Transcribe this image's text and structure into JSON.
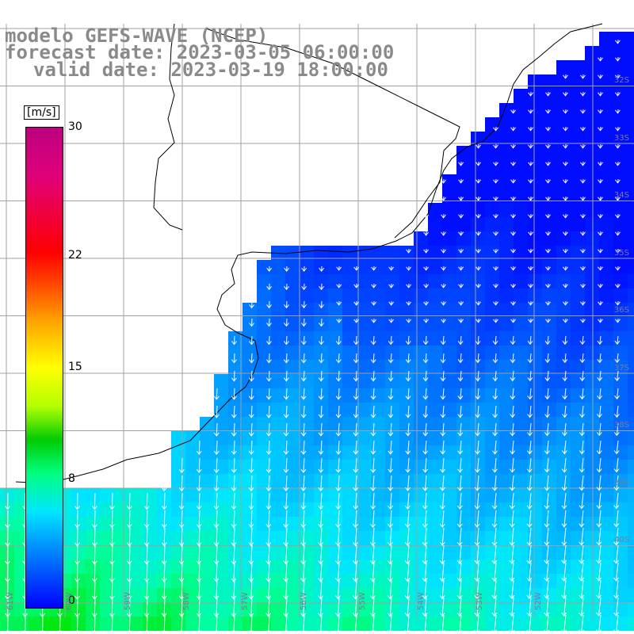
{
  "title": {
    "model": "modelo GEFS-WAVE (NCEP)",
    "forecast_date": "forecast date: 2023-03-05 06:00:00",
    "valid_date": "valid date: 2023-03-19 18:00:00"
  },
  "colorbar": {
    "unit": "[m/s]",
    "ticks": [
      {
        "value": 30,
        "label": "30"
      },
      {
        "value": 22,
        "label": "22"
      },
      {
        "value": 15,
        "label": "15"
      },
      {
        "value": 8,
        "label": "8"
      },
      {
        "value": 0,
        "label": "0"
      }
    ],
    "colors": [
      "#0000ff",
      "#0095ff",
      "#00e6ff",
      "#00ff80",
      "#00cc00",
      "#b4ff00",
      "#ffff00",
      "#ffa000",
      "#ff0000",
      "#bb0080"
    ]
  },
  "map": {
    "lat_labels": [
      "32S",
      "33S",
      "34S",
      "35S",
      "36S",
      "37S",
      "38S",
      "39S",
      "40S"
    ],
    "lon_labels": [
      "61W",
      "60W",
      "59W",
      "58W",
      "57W",
      "56W",
      "55W",
      "54W",
      "53W",
      "52W"
    ],
    "wind_direction": "south-southwest",
    "grid_color": "#a0a0a0",
    "coast_color": "#000000"
  }
}
